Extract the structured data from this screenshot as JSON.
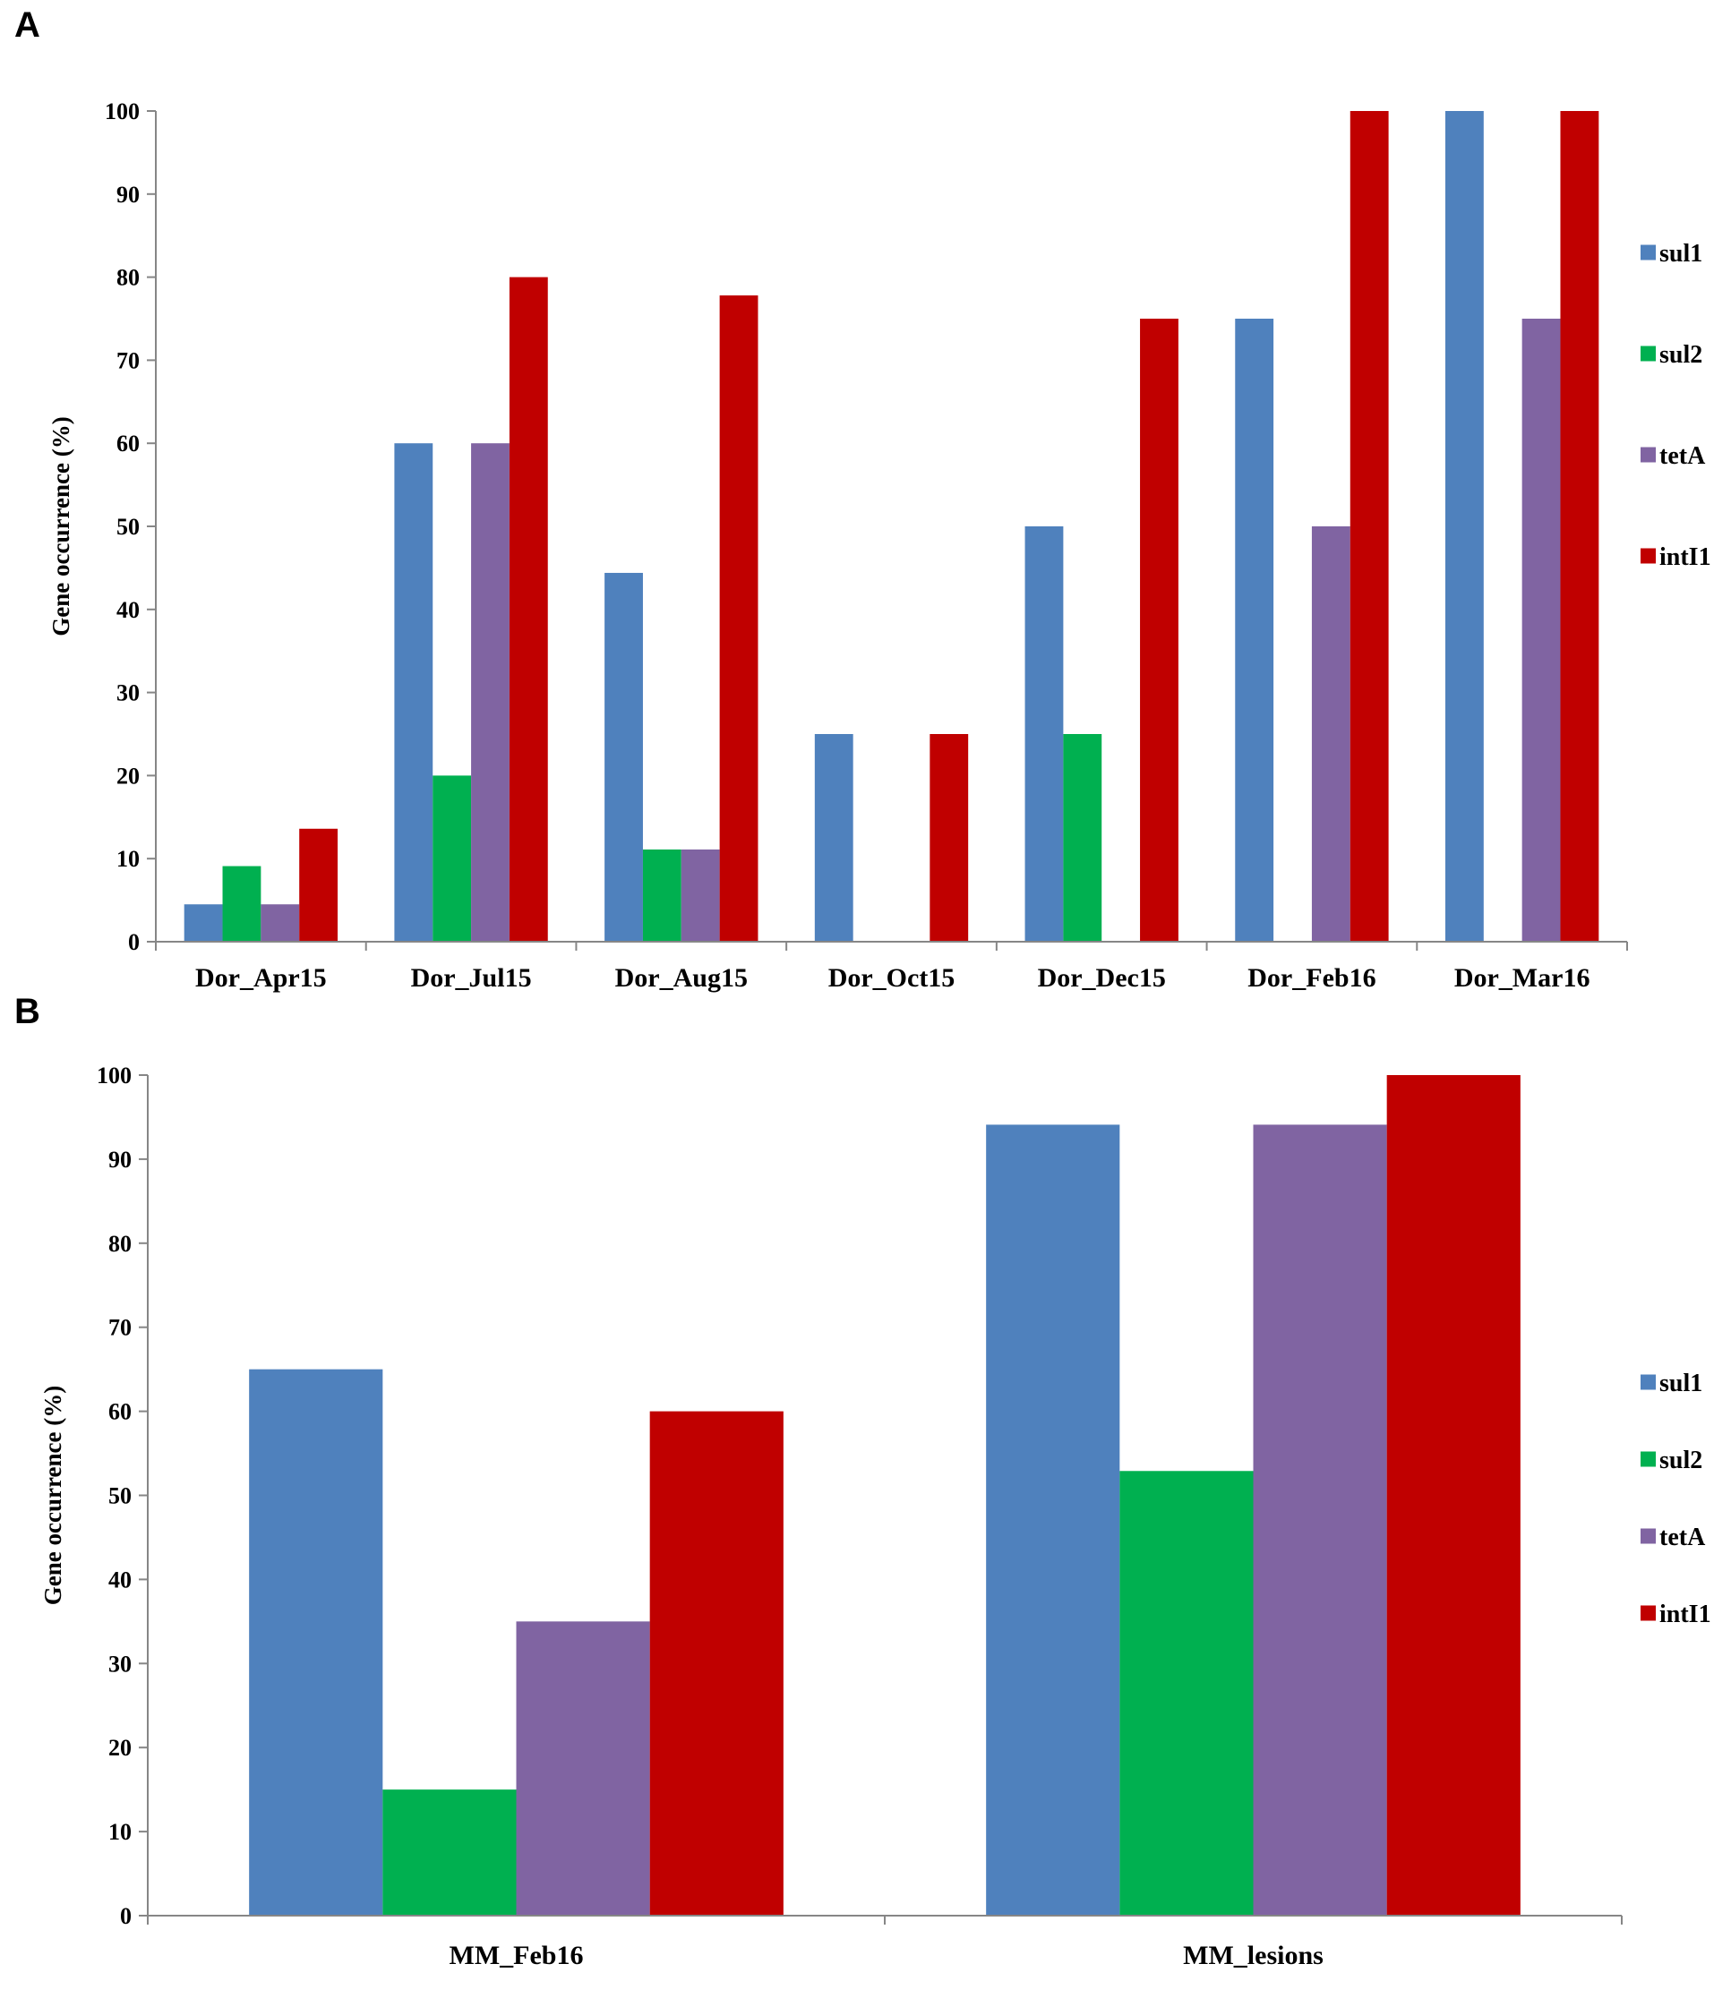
{
  "colors": {
    "sul1": "#4F81BD",
    "sul2": "#00B050",
    "tetA": "#8064A2",
    "intI1": "#C00000",
    "axis": "#868686"
  },
  "chart_data": [
    {
      "panel": "A",
      "type": "bar",
      "ylabel": "Gene occurrence (%)",
      "xlabel": "",
      "ylim": [
        0,
        100
      ],
      "yticks": [
        0,
        10,
        20,
        30,
        40,
        50,
        60,
        70,
        80,
        90,
        100
      ],
      "legend_position": "right",
      "categories": [
        "Dor_Apr15",
        "Dor_Jul15",
        "Dor_Aug15",
        "Dor_Oct15",
        "Dor_Dec15",
        "Dor_Feb16",
        "Dor_Mar16"
      ],
      "series": [
        {
          "name": "sul1",
          "values": [
            4.5,
            60,
            44.4,
            25,
            50,
            75,
            100
          ]
        },
        {
          "name": "sul2",
          "values": [
            9.1,
            20,
            11.1,
            0,
            25,
            0,
            0
          ]
        },
        {
          "name": "tetA",
          "values": [
            4.5,
            60,
            11.1,
            0,
            0,
            50,
            75
          ]
        },
        {
          "name": "intI1",
          "values": [
            13.6,
            80,
            77.8,
            25,
            75,
            100,
            100
          ]
        }
      ]
    },
    {
      "panel": "B",
      "type": "bar",
      "ylabel": "Gene occurrence (%)",
      "xlabel": "",
      "ylim": [
        0,
        100
      ],
      "yticks": [
        0,
        10,
        20,
        30,
        40,
        50,
        60,
        70,
        80,
        90,
        100
      ],
      "legend_position": "right",
      "categories": [
        "MM_Feb16",
        "MM_lesions"
      ],
      "series": [
        {
          "name": "sul1",
          "values": [
            65,
            94.1
          ]
        },
        {
          "name": "sul2",
          "values": [
            15,
            52.9
          ]
        },
        {
          "name": "tetA",
          "values": [
            35,
            94.1
          ]
        },
        {
          "name": "intI1",
          "values": [
            60,
            100
          ]
        }
      ]
    }
  ]
}
